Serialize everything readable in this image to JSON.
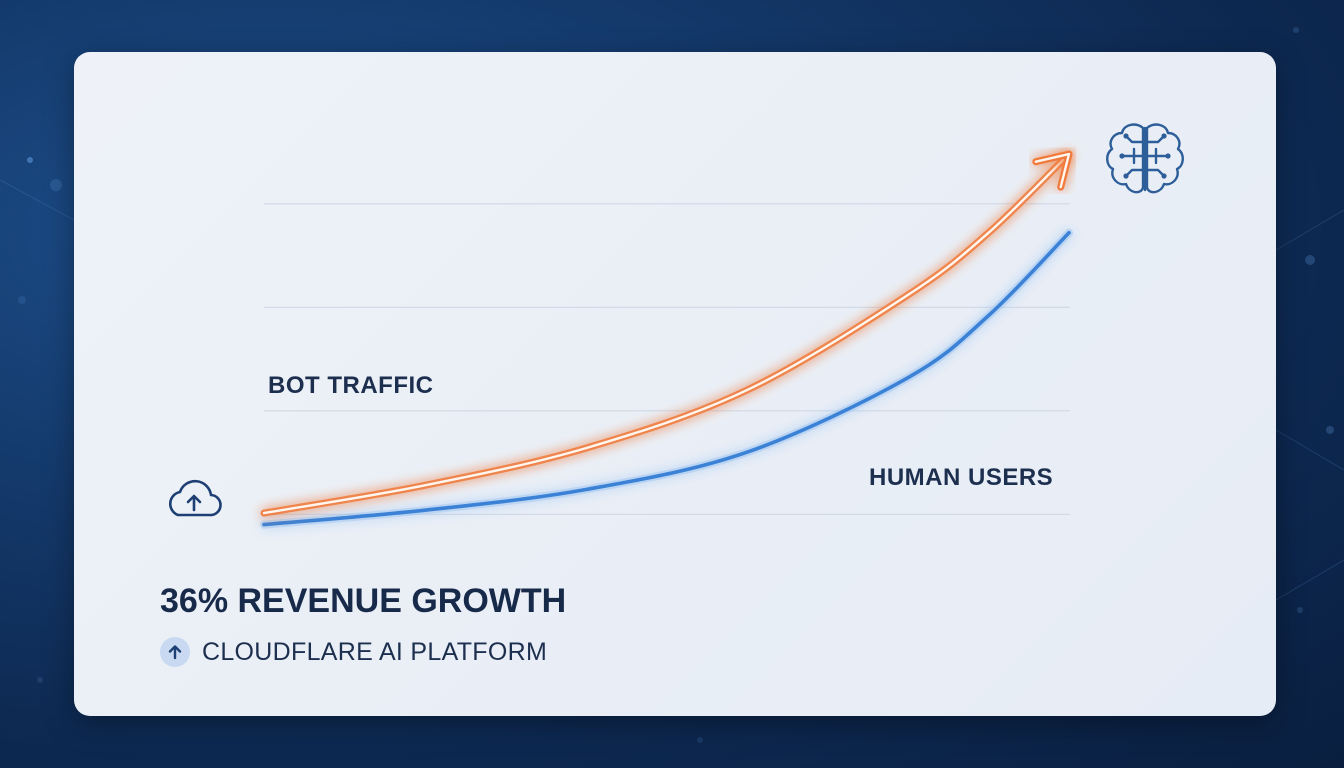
{
  "chart_data": {
    "type": "line",
    "title": "",
    "xlabel": "",
    "ylabel": "",
    "grid": true,
    "series": [
      {
        "name": "BOT TRAFFIC",
        "color": "#f07a3a",
        "arrow": true,
        "values": [
          {
            "x": 0,
            "y": 0.3
          },
          {
            "x": 20,
            "y": 7
          },
          {
            "x": 40,
            "y": 16
          },
          {
            "x": 60,
            "y": 30
          },
          {
            "x": 80,
            "y": 53
          },
          {
            "x": 90,
            "y": 68
          },
          {
            "x": 100,
            "y": 87
          }
        ]
      },
      {
        "name": "HUMAN USERS",
        "color": "#3b82d6",
        "arrow": false,
        "values": [
          {
            "x": 0,
            "y": -2.5
          },
          {
            "x": 20,
            "y": 1
          },
          {
            "x": 40,
            "y": 6
          },
          {
            "x": 60,
            "y": 15
          },
          {
            "x": 80,
            "y": 33
          },
          {
            "x": 90,
            "y": 48
          },
          {
            "x": 100,
            "y": 68
          }
        ]
      }
    ],
    "y_gridlines": [
      0,
      25,
      50,
      75
    ],
    "xlim": [
      0,
      100
    ],
    "ylim": [
      -5,
      95
    ]
  },
  "headline": "36% REVENUE GROWTH",
  "subline": "CLOUDFLARE AI PLATFORM",
  "icons": {
    "left": "cloud-upload-icon",
    "right": "brain-circuit-icon",
    "sub": "arrow-up-icon"
  },
  "colors": {
    "bot": "#f07a3a",
    "human": "#3b82d6",
    "text": "#1d2f4f"
  }
}
